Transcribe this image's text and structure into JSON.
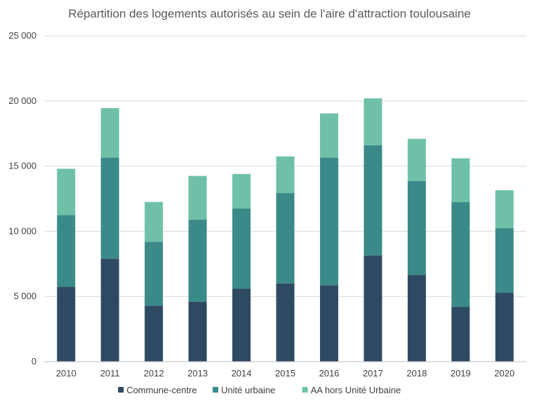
{
  "chart_data": {
    "type": "bar",
    "stacked": true,
    "title": "Répartition des logements autorisés au sein de l'aire d'attraction toulousaine",
    "xlabel": "",
    "ylabel": "",
    "ylim": [
      0,
      25000
    ],
    "yticks": [
      0,
      5000,
      10000,
      15000,
      20000,
      25000
    ],
    "ytick_labels": [
      "0",
      "5 000",
      "10 000",
      "15 000",
      "20 000",
      "25 000"
    ],
    "grid": true,
    "legend_position": "bottom",
    "categories": [
      "2010",
      "2011",
      "2012",
      "2013",
      "2014",
      "2015",
      "2016",
      "2017",
      "2018",
      "2019",
      "2020"
    ],
    "series": [
      {
        "name": "Commune-centre",
        "color": "#2e4a63",
        "values": [
          5750,
          7900,
          4300,
          4600,
          5600,
          6000,
          5850,
          8150,
          6650,
          4200,
          5300
        ]
      },
      {
        "name": "Unité urbaine",
        "color": "#3a8a89",
        "values": [
          5500,
          7750,
          4900,
          6300,
          6150,
          6950,
          9800,
          8450,
          7200,
          8050,
          4950
        ]
      },
      {
        "name": "AA hors Unité Urbaine",
        "color": "#6ec1a8",
        "values": [
          3550,
          3800,
          3050,
          3350,
          2650,
          2800,
          3400,
          3600,
          3250,
          3350,
          2900
        ]
      }
    ]
  }
}
